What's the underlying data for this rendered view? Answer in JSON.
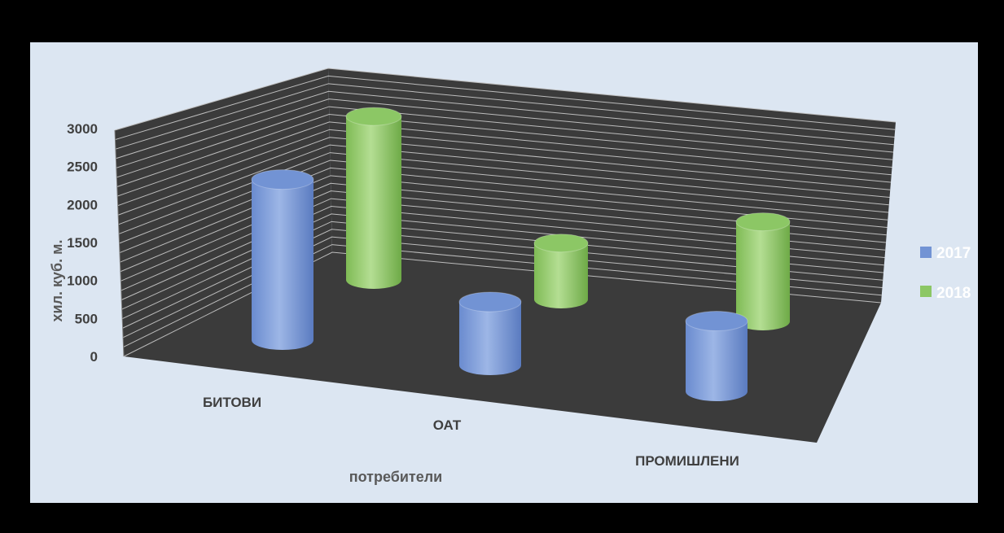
{
  "chart_data": {
    "type": "bar",
    "variant": "3d-cylinder",
    "categories": [
      "БИТОВИ",
      "ОАТ",
      "ПРОМИШЛЕНИ"
    ],
    "series": [
      {
        "name": "2017",
        "values": [
          2100,
          650,
          650
        ]
      },
      {
        "name": "2018",
        "values": [
          2050,
          550,
          850
        ]
      }
    ],
    "title": "",
    "xlabel": "потребители",
    "ylabel": "хил. куб. м.",
    "ylim": [
      0,
      3000
    ],
    "yticks": [
      "0",
      "500",
      "1000",
      "1500",
      "2000",
      "2500",
      "3000"
    ],
    "grid": true,
    "legend": "right",
    "colors": {
      "2017": "#7293d4",
      "2018": "#8cc765",
      "plot_background": "#dce6f2",
      "frame": "#000000",
      "walls": "#3b3b3b",
      "gridlines": "#bdbdbd"
    }
  }
}
